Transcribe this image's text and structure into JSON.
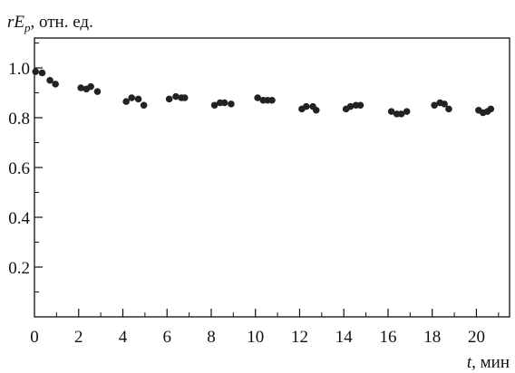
{
  "chart_data": {
    "type": "scatter",
    "ylabel": {
      "var": "rE",
      "sub": "p",
      "unit": ", отн. ед."
    },
    "xlabel": {
      "var": "t",
      "unit": ", мин"
    },
    "xlim": [
      0,
      21.5
    ],
    "ylim": [
      0,
      1.12
    ],
    "x_ticks": [
      0,
      2,
      4,
      6,
      8,
      10,
      12,
      14,
      16,
      18,
      20
    ],
    "x_tick_labels": [
      "0",
      "2",
      "4",
      "6",
      "8",
      "10",
      "12",
      "14",
      "16",
      "18",
      "20"
    ],
    "y_ticks": [
      0.2,
      0.4,
      0.6,
      0.8,
      1.0
    ],
    "y_tick_labels": [
      "0.2",
      "0.4",
      "0.6",
      "0.8",
      "1.0"
    ],
    "y_minor_ticks": [
      0.1,
      0.3,
      0.5,
      0.7,
      0.9,
      1.1
    ],
    "x_minor_ticks": [
      1,
      3,
      5,
      7,
      9,
      11,
      13,
      15,
      17,
      19,
      21
    ],
    "grid": false,
    "marker_color": "#222222",
    "series": [
      {
        "x": [
          0.05,
          0.35,
          0.7,
          0.95,
          2.1,
          2.35,
          2.55,
          2.85,
          4.15,
          4.4,
          4.7,
          4.95,
          6.1,
          6.4,
          6.65,
          6.8,
          8.15,
          8.4,
          8.6,
          8.9,
          10.1,
          10.35,
          10.55,
          10.75,
          12.1,
          12.3,
          12.6,
          12.75,
          14.1,
          14.3,
          14.55,
          14.75,
          16.15,
          16.4,
          16.6,
          16.85,
          18.1,
          18.35,
          18.55,
          18.75,
          20.1,
          20.3,
          20.5,
          20.65
        ],
        "y": [
          0.985,
          0.98,
          0.95,
          0.935,
          0.92,
          0.915,
          0.925,
          0.905,
          0.865,
          0.88,
          0.875,
          0.85,
          0.875,
          0.885,
          0.88,
          0.88,
          0.85,
          0.86,
          0.86,
          0.855,
          0.88,
          0.87,
          0.87,
          0.87,
          0.835,
          0.845,
          0.845,
          0.83,
          0.835,
          0.845,
          0.85,
          0.85,
          0.825,
          0.815,
          0.815,
          0.825,
          0.85,
          0.86,
          0.855,
          0.835,
          0.83,
          0.82,
          0.825,
          0.835
        ]
      }
    ]
  }
}
